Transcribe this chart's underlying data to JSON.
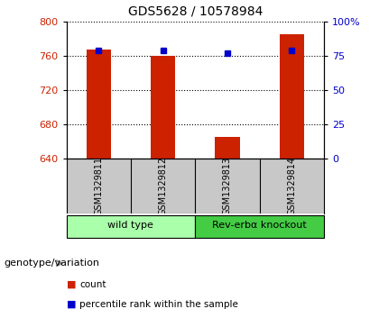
{
  "title": "GDS5628 / 10578984",
  "samples": [
    "GSM1329811",
    "GSM1329812",
    "GSM1329813",
    "GSM1329814"
  ],
  "counts": [
    767,
    760,
    665,
    785
  ],
  "percentiles": [
    79,
    79,
    77,
    79
  ],
  "ylim_left": [
    640,
    800
  ],
  "ylim_right": [
    0,
    100
  ],
  "yticks_left": [
    640,
    680,
    720,
    760,
    800
  ],
  "yticks_right": [
    0,
    25,
    50,
    75,
    100
  ],
  "bar_color": "#cc2200",
  "marker_color": "#0000cc",
  "groups": [
    {
      "label": "wild type",
      "indices": [
        0,
        1
      ],
      "color": "#aaffaa"
    },
    {
      "label": "Rev-erbα knockout",
      "indices": [
        2,
        3
      ],
      "color": "#44cc44"
    }
  ],
  "group_label": "genotype/variation",
  "legend_items": [
    {
      "label": "count",
      "color": "#cc2200"
    },
    {
      "label": "percentile rank within the sample",
      "color": "#0000cc"
    }
  ],
  "background_color": "#ffffff",
  "plot_bg_color": "#ffffff",
  "tick_label_bg": "#c8c8c8"
}
